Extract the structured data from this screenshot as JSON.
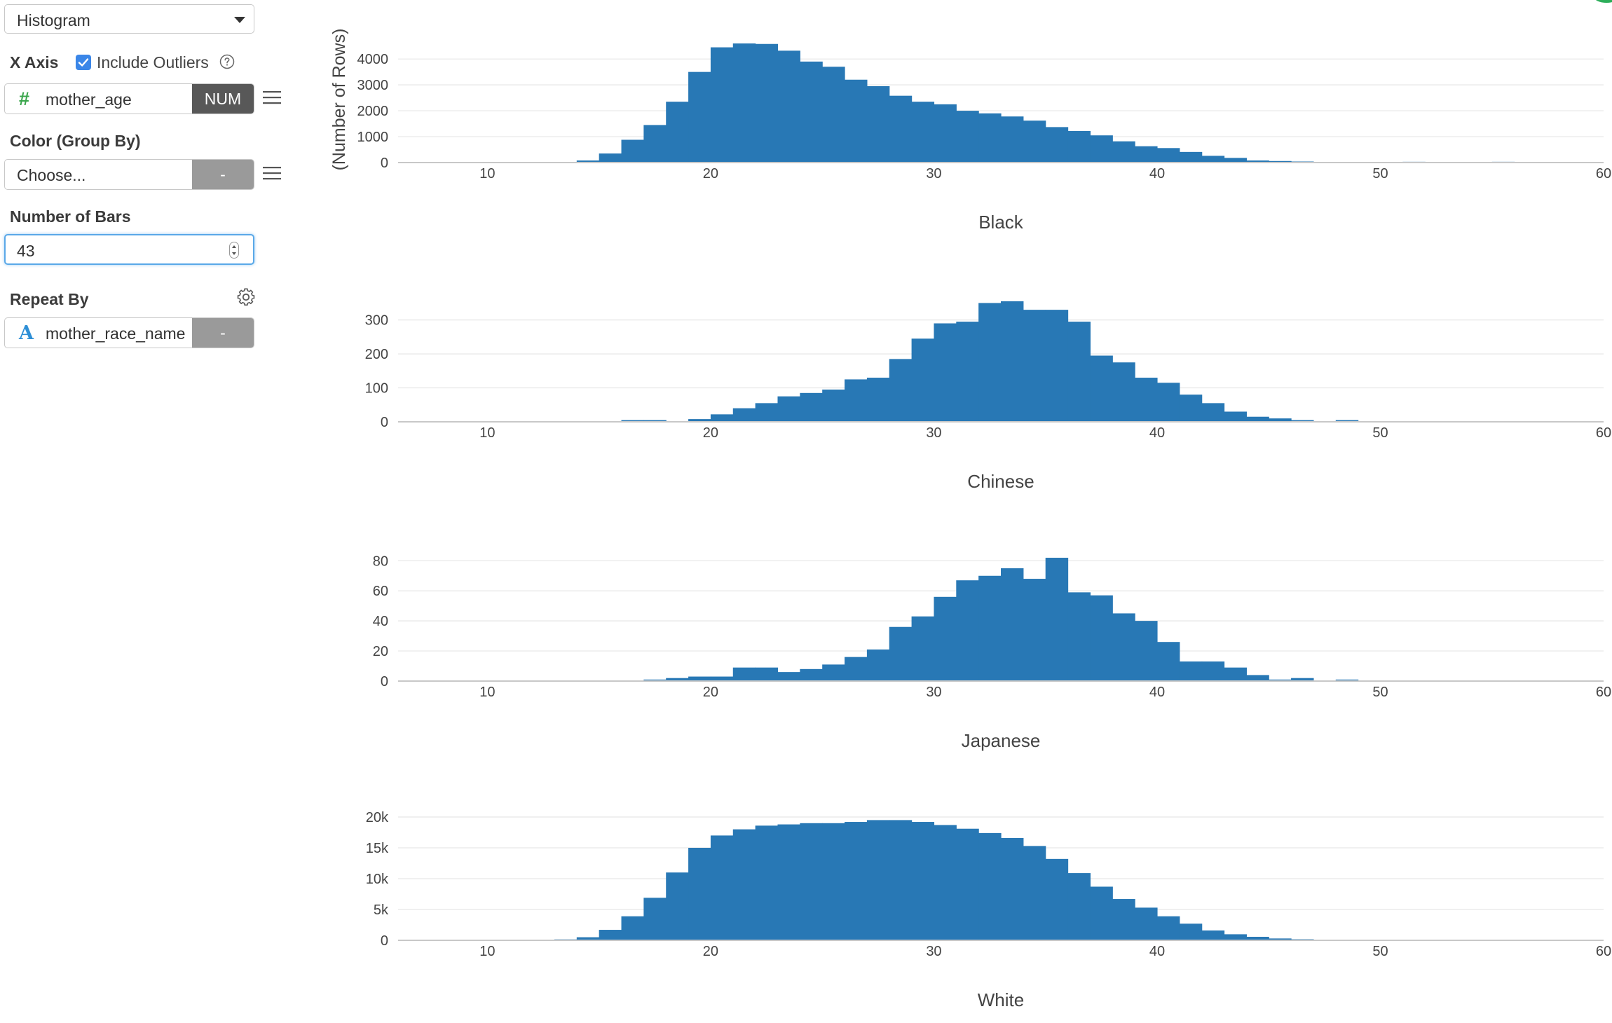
{
  "sidebar": {
    "chart_type": "Histogram",
    "x_axis": {
      "label": "X Axis",
      "include_outliers_label": "Include Outliers",
      "include_outliers_checked": true,
      "field_icon": "#",
      "field_name": "mother_age",
      "type_badge": "NUM"
    },
    "color": {
      "label": "Color (Group By)",
      "placeholder": "Choose...",
      "badge": "-"
    },
    "bars": {
      "label": "Number of Bars",
      "value": "43"
    },
    "repeat": {
      "label": "Repeat By",
      "field_icon": "A",
      "field_name": "mother_race_name",
      "badge": "-"
    },
    "icons": {
      "help": "help-circle-icon",
      "menu": "hamburger-menu-icon",
      "settings": "gear-icon",
      "caret": "caret-down-icon"
    }
  },
  "chart_data": {
    "type": "bar",
    "ylabel": "(Number of Rows)",
    "bar_color": "#2878b5",
    "x_ticks": [
      10,
      20,
      30,
      40,
      50,
      60
    ],
    "xlim": [
      6,
      60
    ],
    "bin_start": 12,
    "bin_width": 1,
    "panels": [
      {
        "title": "Black",
        "y_ticks": [
          0,
          1000,
          2000,
          3000,
          4000
        ],
        "y_tick_labels": [
          "0",
          "1000",
          "2000",
          "3000",
          "4000"
        ],
        "ylim": [
          0,
          4600
        ],
        "values": [
          0,
          20,
          80,
          350,
          880,
          1450,
          2350,
          3500,
          4450,
          4600,
          4580,
          4320,
          3900,
          3700,
          3200,
          2950,
          2580,
          2350,
          2250,
          2000,
          1900,
          1780,
          1620,
          1370,
          1220,
          1050,
          820,
          630,
          560,
          410,
          260,
          180,
          80,
          60,
          40,
          20,
          20,
          10,
          10,
          30,
          20,
          10,
          10,
          30,
          20,
          0,
          0,
          0
        ]
      },
      {
        "title": "Chinese",
        "y_ticks": [
          0,
          100,
          200,
          300
        ],
        "y_tick_labels": [
          "0",
          "100",
          "200",
          "300"
        ],
        "ylim": [
          0,
          355
        ],
        "values": [
          0,
          0,
          0,
          0,
          5,
          5,
          2,
          8,
          22,
          40,
          55,
          75,
          85,
          95,
          125,
          130,
          185,
          245,
          290,
          295,
          350,
          355,
          330,
          330,
          295,
          195,
          175,
          130,
          115,
          80,
          55,
          30,
          15,
          10,
          5,
          0,
          5,
          0,
          0,
          0,
          0,
          0,
          0,
          2,
          0,
          0,
          0,
          0
        ]
      },
      {
        "title": "Japanese",
        "y_ticks": [
          0,
          20,
          40,
          60,
          80
        ],
        "y_tick_labels": [
          "0",
          "20",
          "40",
          "60",
          "80"
        ],
        "ylim": [
          0,
          82
        ],
        "values": [
          0,
          0,
          0,
          0,
          0,
          1,
          2,
          3,
          3,
          9,
          9,
          6,
          8,
          11,
          16,
          21,
          36,
          43,
          56,
          67,
          70,
          75,
          68,
          82,
          59,
          57,
          45,
          40,
          26,
          13,
          13,
          9,
          4,
          1,
          2,
          0,
          1,
          0,
          0,
          0,
          0,
          0,
          0,
          0,
          0,
          0,
          0,
          0
        ]
      },
      {
        "title": "White",
        "y_ticks": [
          0,
          5000,
          10000,
          15000,
          20000
        ],
        "y_tick_labels": [
          "0",
          "5k",
          "10k",
          "15k",
          "20k"
        ],
        "ylim": [
          0,
          20000
        ],
        "values": [
          50,
          150,
          500,
          1700,
          3900,
          6900,
          11000,
          15000,
          17000,
          18000,
          18600,
          18800,
          19000,
          19000,
          19200,
          19500,
          19500,
          19200,
          18700,
          18100,
          17400,
          16600,
          15300,
          13200,
          10900,
          8700,
          6700,
          5300,
          3900,
          2700,
          1600,
          980,
          570,
          300,
          170,
          90,
          60,
          40,
          30,
          20,
          10,
          10,
          5,
          5,
          0,
          0,
          0,
          0
        ]
      }
    ]
  }
}
